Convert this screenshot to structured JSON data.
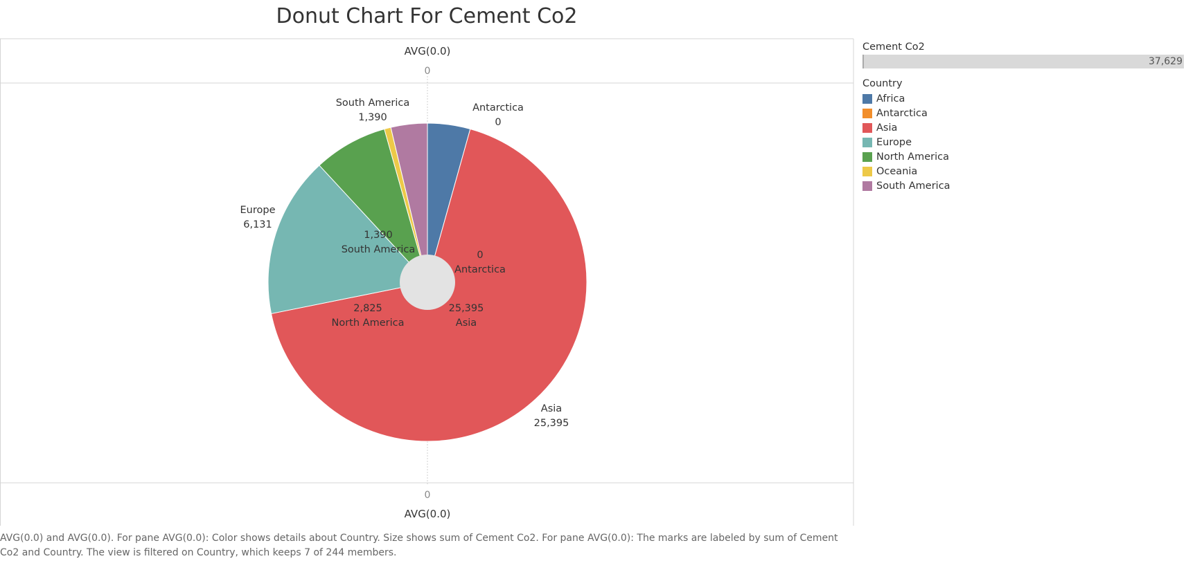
{
  "title": "Donut Chart For Cement Co2",
  "axis": {
    "top_title": "AVG(0.0)",
    "top_tick": "0",
    "bottom_title": "AVG(0.0)",
    "bottom_tick": "0"
  },
  "legend": {
    "size_title": "Cement Co2",
    "size_max": "37,629",
    "color_title": "Country",
    "items": [
      {
        "name": "Africa",
        "color": "#4e79a7"
      },
      {
        "name": "Antarctica",
        "color": "#f28e2b"
      },
      {
        "name": "Asia",
        "color": "#e15759"
      },
      {
        "name": "Europe",
        "color": "#76b7b2"
      },
      {
        "name": "North America",
        "color": "#59a14f"
      },
      {
        "name": "Oceania",
        "color": "#edc948"
      },
      {
        "name": "South America",
        "color": "#b07aa1"
      }
    ]
  },
  "caption": "AVG(0.0) and AVG(0.0).  For pane AVG(0.0):  Color shows details about Country.  Size shows sum of Cement Co2.  For pane AVG(0.0):  The marks are labeled by sum of Cement Co2 and Country. The view is filtered on Country, which keeps 7 of 244 members.",
  "chart_data": {
    "type": "pie",
    "title": "Donut Chart For Cement Co2",
    "slices": [
      {
        "category": "Africa",
        "value": 1630,
        "color": "#4e79a7"
      },
      {
        "category": "Antarctica",
        "value": 0,
        "color": "#f28e2b"
      },
      {
        "category": "Asia",
        "value": 25395,
        "color": "#e15759"
      },
      {
        "category": "Europe",
        "value": 6131,
        "color": "#76b7b2"
      },
      {
        "category": "North America",
        "value": 2825,
        "color": "#59a14f"
      },
      {
        "category": "Oceania",
        "value": 250,
        "color": "#edc948"
      },
      {
        "category": "South America",
        "value": 1390,
        "color": "#b07aa1"
      }
    ],
    "outer_labels": [
      {
        "category": "Antarctica",
        "value_text": "0"
      },
      {
        "category": "Asia",
        "value_text": "25,395"
      },
      {
        "category": "Europe",
        "value_text": "6,131"
      },
      {
        "category": "South America",
        "value_text": "1,390"
      }
    ],
    "inner_labels": [
      {
        "category": "South America",
        "value_text": "1,390"
      },
      {
        "category": "Antarctica",
        "value_text": "0"
      },
      {
        "category": "North America",
        "value_text": "2,825"
      },
      {
        "category": "Asia",
        "value_text": "25,395"
      }
    ],
    "hole_color": "#e3e3e3"
  }
}
